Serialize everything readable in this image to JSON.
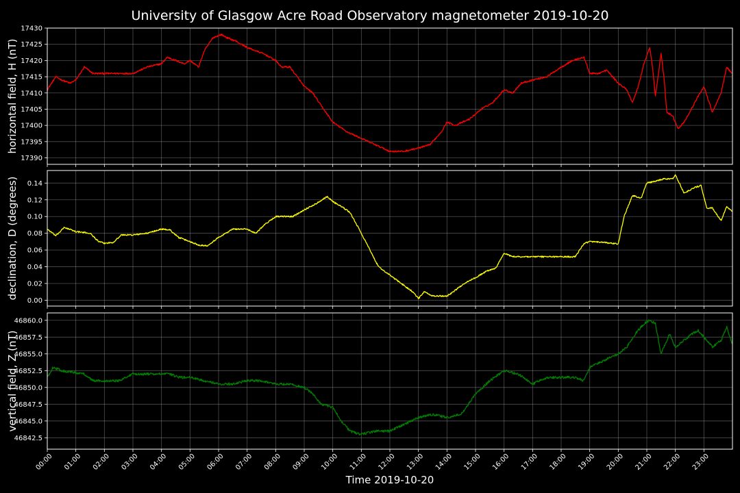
{
  "title": "University of Glasgow Acre Road Observatory magnetometer 2019-10-20",
  "xlabel": "Time 2019-10-20",
  "chart_data": [
    {
      "type": "line",
      "ylabel": "horizontal field, H (nT)",
      "color": "#ff0000",
      "ylim": [
        17388,
        17430
      ],
      "yticks": [
        17390,
        17395,
        17400,
        17405,
        17410,
        17415,
        17420,
        17425,
        17430
      ],
      "ytick_labels": [
        "17390",
        "17395",
        "17400",
        "17405",
        "17410",
        "17415",
        "17420",
        "17425",
        "17430"
      ],
      "grid": true,
      "series": [
        {
          "x": [
            0,
            0.3,
            0.5,
            0.8,
            1.0,
            1.3,
            1.6,
            2.0,
            2.5,
            3.0,
            3.5,
            4.0,
            4.2,
            4.5,
            4.8,
            5.0,
            5.3,
            5.5,
            5.8,
            6.1,
            6.3,
            6.6,
            7.0,
            7.3,
            7.6,
            8.0,
            8.2,
            8.5,
            9.0,
            9.3,
            9.6,
            10.0,
            10.5,
            11.0,
            11.5,
            12.0,
            12.5,
            13.0,
            13.4,
            13.8,
            14.0,
            14.3,
            14.8,
            15.2,
            15.6,
            16.0,
            16.3,
            16.6,
            17.0,
            17.5,
            18.0,
            18.4,
            18.8,
            19.0,
            19.3,
            19.6,
            20.0,
            20.3,
            20.5,
            20.7,
            20.9,
            21.1,
            21.2,
            21.3,
            21.5,
            21.6,
            21.7,
            21.9,
            22.1,
            22.3,
            22.5,
            22.8,
            23.0,
            23.3,
            23.6,
            23.8,
            23.98
          ],
          "y": [
            17411,
            17415,
            17414,
            17413,
            17414,
            17418,
            17416,
            17416,
            17416,
            17416,
            17418,
            17419,
            17421,
            17420,
            17419,
            17420,
            17418,
            17423,
            17427,
            17428,
            17427,
            17426,
            17424,
            17423,
            17422,
            17420,
            17418,
            17418,
            17412,
            17410,
            17406,
            17401,
            17398,
            17396,
            17394,
            17392,
            17392,
            17393,
            17394,
            17398,
            17401,
            17400,
            17402,
            17405,
            17407,
            17411,
            17410,
            17413,
            17414,
            17415,
            17418,
            17420,
            17421,
            17416,
            17416,
            17417,
            17413,
            17411,
            17407,
            17412,
            17419,
            17424,
            17418,
            17409,
            17422,
            17415,
            17404,
            17403,
            17399,
            17401,
            17404,
            17409,
            17412,
            17404,
            17410,
            17418,
            17416
          ]
        }
      ]
    },
    {
      "type": "line",
      "ylabel": "declination, D (degrees)",
      "color": "#ffff00",
      "ylim": [
        -0.007,
        0.155
      ],
      "yticks": [
        0.0,
        0.02,
        0.04,
        0.06,
        0.08,
        0.1,
        0.12,
        0.14
      ],
      "ytick_labels": [
        "0.00",
        "0.02",
        "0.04",
        "0.06",
        "0.08",
        "0.10",
        "0.12",
        "0.14"
      ],
      "grid": true,
      "series": [
        {
          "x": [
            0,
            0.3,
            0.6,
            1.0,
            1.5,
            1.8,
            2.0,
            2.3,
            2.6,
            3.0,
            3.5,
            4.0,
            4.3,
            4.6,
            5.0,
            5.3,
            5.6,
            6.0,
            6.5,
            7.0,
            7.3,
            7.6,
            8.0,
            8.3,
            8.6,
            9.0,
            9.4,
            9.8,
            10.0,
            10.3,
            10.6,
            11.0,
            11.3,
            11.6,
            12.0,
            12.4,
            12.8,
            13.0,
            13.2,
            13.5,
            14.0,
            14.3,
            14.6,
            15.0,
            15.4,
            15.7,
            16.0,
            16.3,
            16.6,
            17.0,
            17.5,
            18.0,
            18.5,
            18.8,
            19.0,
            19.5,
            20.0,
            20.2,
            20.5,
            20.8,
            21.0,
            21.3,
            21.6,
            21.9,
            22.0,
            22.3,
            22.7,
            22.9,
            23.1,
            23.3,
            23.6,
            23.8,
            23.98
          ],
          "y": [
            0.085,
            0.077,
            0.087,
            0.082,
            0.08,
            0.07,
            0.068,
            0.069,
            0.078,
            0.078,
            0.08,
            0.085,
            0.084,
            0.075,
            0.07,
            0.066,
            0.065,
            0.075,
            0.085,
            0.085,
            0.08,
            0.09,
            0.1,
            0.1,
            0.1,
            0.108,
            0.115,
            0.124,
            0.118,
            0.112,
            0.105,
            0.08,
            0.06,
            0.04,
            0.03,
            0.02,
            0.01,
            0.002,
            0.01,
            0.005,
            0.005,
            0.012,
            0.02,
            0.027,
            0.035,
            0.038,
            0.056,
            0.052,
            0.052,
            0.052,
            0.052,
            0.052,
            0.052,
            0.068,
            0.07,
            0.069,
            0.067,
            0.1,
            0.125,
            0.122,
            0.14,
            0.142,
            0.145,
            0.145,
            0.15,
            0.128,
            0.135,
            0.137,
            0.11,
            0.11,
            0.095,
            0.112,
            0.106
          ]
        }
      ]
    },
    {
      "type": "line",
      "ylabel": "vertical field, Z (nT)",
      "color": "#008000",
      "ylim": [
        46840.8,
        46861.1
      ],
      "yticks": [
        46842.5,
        46845.0,
        46847.5,
        46850.0,
        46852.5,
        46855.0,
        46857.5,
        46860.0
      ],
      "ytick_labels": [
        "46842.5",
        "46845.0",
        "46847.5",
        "46850.0",
        "46852.5",
        "46855.0",
        "46857.5",
        "46860.0"
      ],
      "grid": true,
      "series": [
        {
          "x": [
            0,
            0.2,
            0.5,
            1.0,
            1.3,
            1.6,
            2.0,
            2.5,
            3.0,
            3.5,
            4.0,
            4.3,
            4.6,
            5.0,
            5.5,
            6.0,
            6.5,
            7.0,
            7.5,
            8.0,
            8.5,
            9.0,
            9.3,
            9.6,
            10.0,
            10.3,
            10.6,
            11.0,
            11.5,
            12.0,
            12.5,
            13.0,
            13.5,
            14.0,
            14.5,
            15.0,
            15.5,
            16.0,
            16.5,
            17.0,
            17.5,
            18.0,
            18.5,
            18.8,
            19.0,
            19.5,
            20.0,
            20.3,
            20.6,
            20.9,
            21.1,
            21.3,
            21.5,
            21.8,
            22.0,
            22.3,
            22.6,
            22.8,
            23.0,
            23.3,
            23.6,
            23.8,
            23.98
          ],
          "y": [
            46851.5,
            46853.0,
            46852.5,
            46852.2,
            46852.0,
            46851.0,
            46851.0,
            46851.0,
            46852.0,
            46852.0,
            46852.0,
            46852.0,
            46851.5,
            46851.5,
            46851.0,
            46850.5,
            46850.5,
            46851.0,
            46851.0,
            46850.5,
            46850.5,
            46850.0,
            46849.0,
            46847.5,
            46847.0,
            46845.0,
            46843.5,
            46843.0,
            46843.5,
            46843.5,
            46844.5,
            46845.5,
            46846.0,
            46845.5,
            46846.0,
            46849.0,
            46851.0,
            46852.5,
            46852.0,
            46850.5,
            46851.5,
            46851.5,
            46851.5,
            46851.0,
            46853.0,
            46854.0,
            46855.0,
            46856.0,
            46858.0,
            46859.5,
            46860.0,
            46859.5,
            46855.0,
            46858.0,
            46856.0,
            46857.0,
            46858.0,
            46858.5,
            46857.5,
            46856.0,
            46857.0,
            46859.0,
            46856.5
          ]
        }
      ]
    }
  ],
  "x_ticks": [
    "00:00",
    "01:00",
    "02:00",
    "03:00",
    "04:00",
    "05:00",
    "06:00",
    "07:00",
    "08:00",
    "09:00",
    "10:00",
    "11:00",
    "12:00",
    "13:00",
    "14:00",
    "15:00",
    "16:00",
    "17:00",
    "18:00",
    "19:00",
    "20:00",
    "21:00",
    "22:00",
    "23:00"
  ],
  "xlim": [
    0,
    24
  ]
}
